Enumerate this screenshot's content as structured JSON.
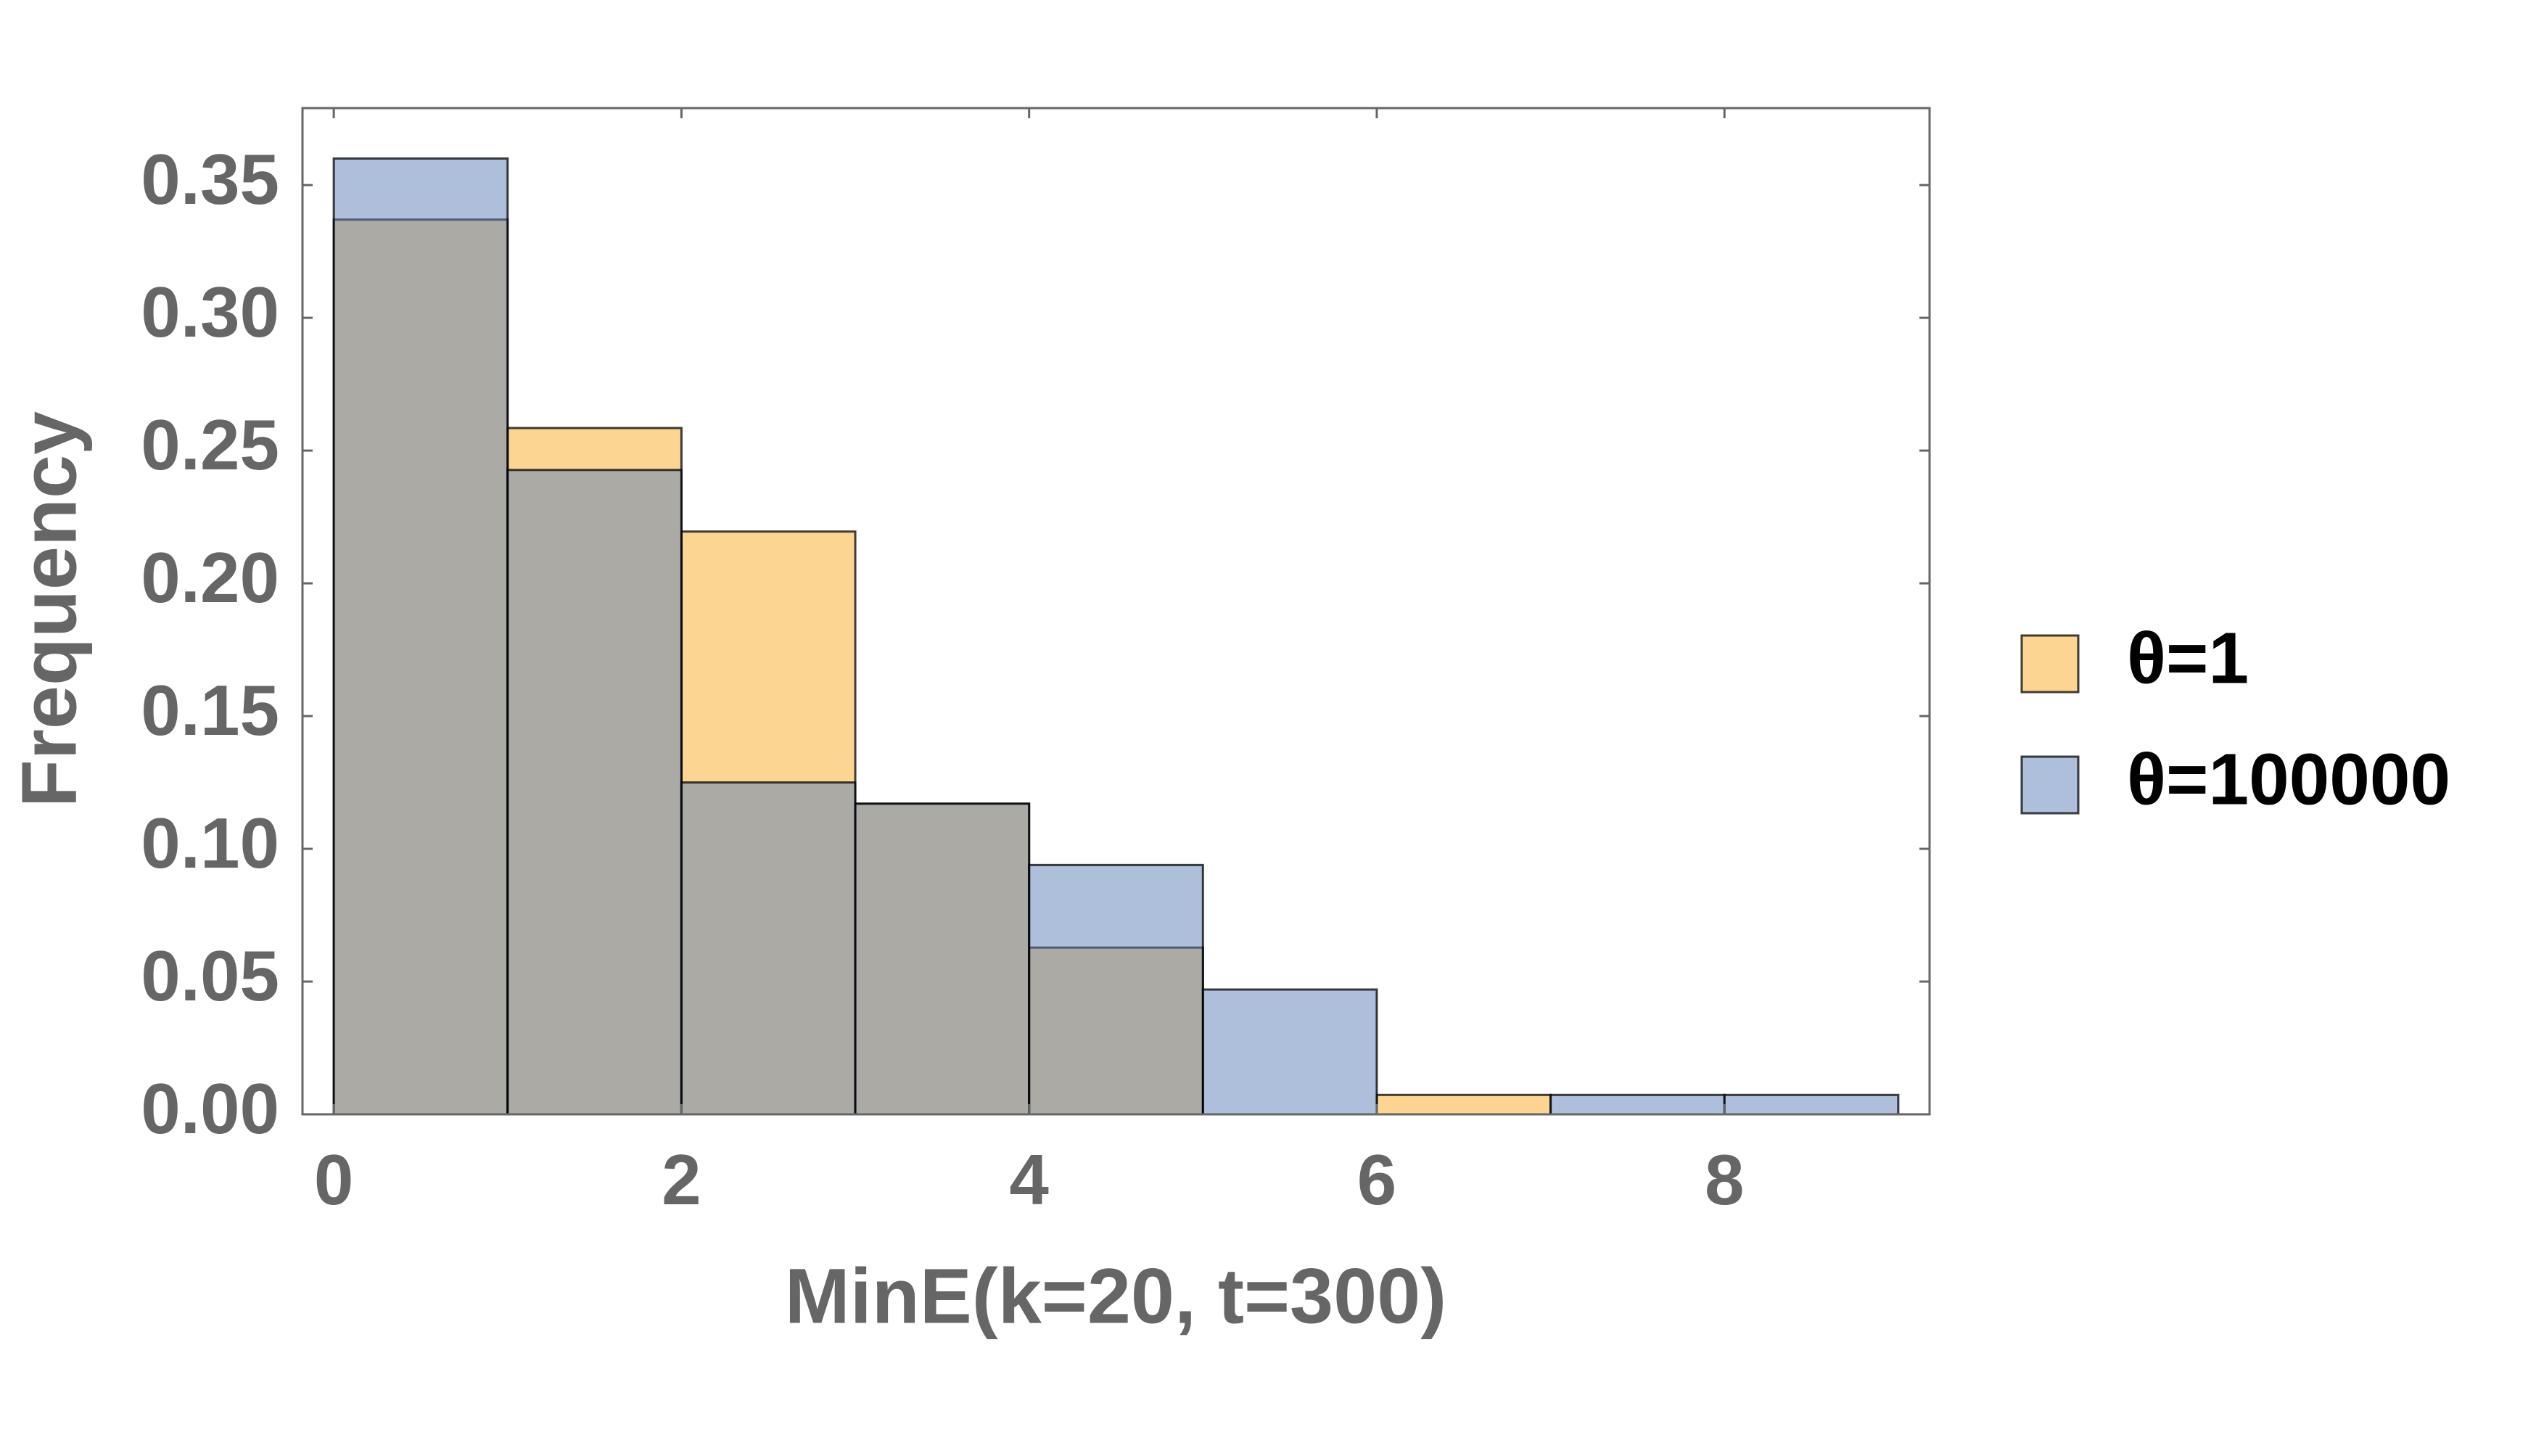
{
  "chart_data": {
    "type": "histogram",
    "xlabel": "MinE(k=20, t=300)",
    "ylabel": "Frequency",
    "bins": [
      0,
      1,
      2,
      3,
      4,
      5,
      6,
      7,
      8,
      9
    ],
    "series": [
      {
        "name": "θ=1",
        "color": "#f9ab25",
        "values": [
          0.337,
          0.2585,
          0.2195,
          0.117,
          0.0628,
          0,
          0.0073,
          0,
          0
        ]
      },
      {
        "name": "θ=100000",
        "color": "#5b7fb7",
        "values": [
          0.36,
          0.2427,
          0.125,
          0.117,
          0.0939,
          0.047,
          0,
          0.0073,
          0.0073
        ]
      }
    ],
    "xlim": [
      -0.18,
      9.18
    ],
    "ylim": [
      0,
      0.379
    ],
    "xticks": [
      0,
      2,
      4,
      6,
      8
    ],
    "yticks": [
      {
        "value": 0,
        "label": "0.00"
      },
      {
        "value": 0.05,
        "label": "0.05"
      },
      {
        "value": 0.1,
        "label": "0.10"
      },
      {
        "value": 0.15,
        "label": "0.15"
      },
      {
        "value": 0.2,
        "label": "0.20"
      },
      {
        "value": 0.25,
        "label": "0.25"
      },
      {
        "value": 0.3,
        "label": "0.30"
      },
      {
        "value": 0.35,
        "label": "0.35"
      }
    ],
    "opacity": 0.5,
    "legend": "right"
  }
}
